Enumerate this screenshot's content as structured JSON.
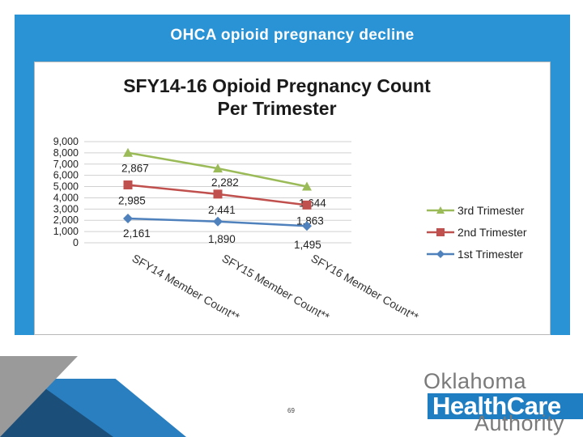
{
  "slide": {
    "title": "OHCA opioid pregnancy decline",
    "page_number": "69"
  },
  "logo": {
    "line1": "Oklahoma",
    "line2": "HealthCare",
    "line3": "Authority"
  },
  "chart_data": {
    "type": "line",
    "title_line1": "SFY14-16 Opioid Pregnancy Count",
    "title_line2": "Per Trimester",
    "categories": [
      "SFY14 Member Count**",
      "SFY15 Member Count**",
      "SFY16 Member Count**"
    ],
    "y_ticks": [
      "9,000",
      "8,000",
      "7,000",
      "6,000",
      "5,000",
      "4,000",
      "3,000",
      "2,000",
      "1,000",
      "0"
    ],
    "ylim": [
      0,
      9000
    ],
    "series": [
      {
        "name": "3rd Trimester",
        "color": "#9bbb59",
        "marker": "triangle",
        "values": [
          2867,
          2282,
          1644
        ],
        "labels": [
          "2,867",
          "2,282",
          "1,644"
        ],
        "stacked_y": [
          8013,
          6613,
          5002
        ]
      },
      {
        "name": "2nd Trimester",
        "color": "#c0504d",
        "marker": "square",
        "values": [
          2985,
          2441,
          1863
        ],
        "labels": [
          "2,985",
          "2,441",
          "1,863"
        ],
        "stacked_y": [
          5146,
          4331,
          3358
        ]
      },
      {
        "name": "1st Trimester",
        "color": "#4f81bd",
        "marker": "diamond",
        "values": [
          2161,
          1890,
          1495
        ],
        "labels": [
          "2,161",
          "1,890",
          "1,495"
        ],
        "stacked_y": [
          2161,
          1890,
          1495
        ]
      }
    ],
    "legend_position": "right"
  }
}
